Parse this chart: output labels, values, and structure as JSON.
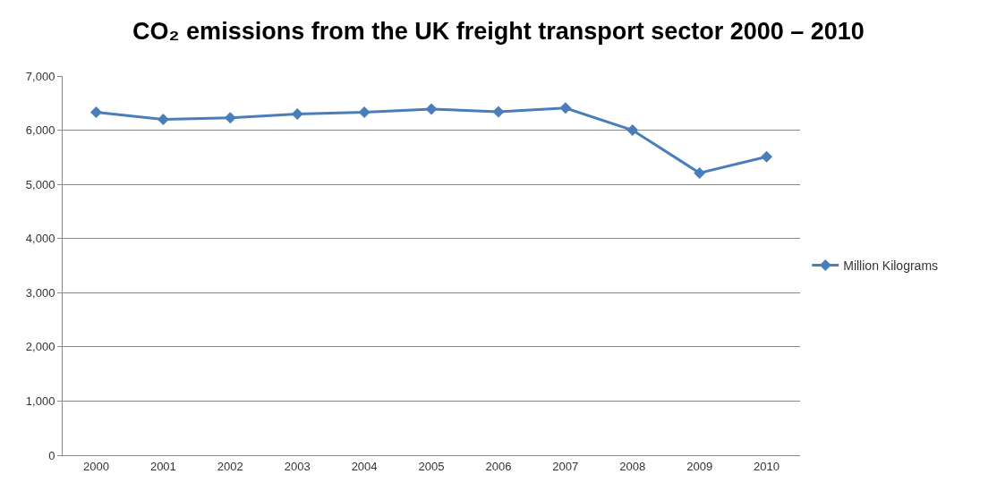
{
  "chart_data": {
    "type": "line",
    "title": "CO₂ emissions from the UK freight transport sector 2000 – 2010",
    "categories": [
      "2000",
      "2001",
      "2002",
      "2003",
      "2004",
      "2005",
      "2006",
      "2007",
      "2008",
      "2009",
      "2010"
    ],
    "series": [
      {
        "name": "Million Kilograms",
        "color": "#4a7ebb",
        "values": [
          6330,
          6200,
          6230,
          6300,
          6330,
          6390,
          6340,
          6410,
          6000,
          5210,
          5510
        ]
      }
    ],
    "ylim": [
      0,
      7000
    ],
    "yticks": [
      {
        "value": 0,
        "label": "0"
      },
      {
        "value": 1000,
        "label": "1,000"
      },
      {
        "value": 2000,
        "label": "2,000"
      },
      {
        "value": 3000,
        "label": "3,000"
      },
      {
        "value": 4000,
        "label": "4,000"
      },
      {
        "value": 5000,
        "label": "5,000"
      },
      {
        "value": 6000,
        "label": "6,000"
      },
      {
        "value": 7000,
        "label": "7,000"
      }
    ],
    "grid": "y",
    "legend": "right",
    "marker": "diamond",
    "line_style": "solid"
  }
}
